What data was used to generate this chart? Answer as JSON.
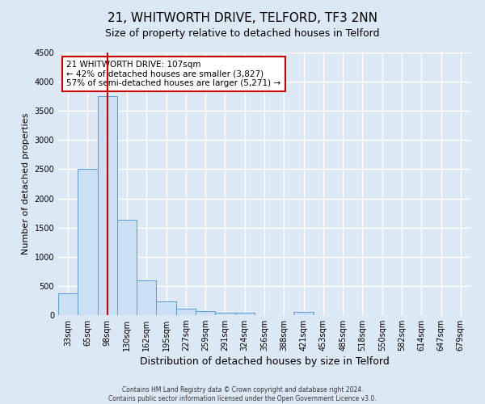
{
  "title": "21, WHITWORTH DRIVE, TELFORD, TF3 2NN",
  "subtitle": "Size of property relative to detached houses in Telford",
  "xlabel": "Distribution of detached houses by size in Telford",
  "ylabel": "Number of detached properties",
  "categories": [
    "33sqm",
    "65sqm",
    "98sqm",
    "130sqm",
    "162sqm",
    "195sqm",
    "227sqm",
    "259sqm",
    "291sqm",
    "324sqm",
    "356sqm",
    "388sqm",
    "421sqm",
    "453sqm",
    "485sqm",
    "518sqm",
    "550sqm",
    "582sqm",
    "614sqm",
    "647sqm",
    "679sqm"
  ],
  "values": [
    370,
    2500,
    3750,
    1640,
    590,
    235,
    110,
    65,
    40,
    35,
    0,
    0,
    60,
    0,
    0,
    0,
    0,
    0,
    0,
    0,
    0
  ],
  "bar_color": "#cce0f5",
  "bar_edge_color": "#5b9bd5",
  "property_line_x": 2.0,
  "property_line_color": "#cc0000",
  "annotation_line1": "21 WHITWORTH DRIVE: 107sqm",
  "annotation_line2": "← 42% of detached houses are smaller (3,827)",
  "annotation_line3": "57% of semi-detached houses are larger (5,271) →",
  "annotation_box_color": "#ffffff",
  "annotation_box_edge": "#cc0000",
  "ylim": [
    0,
    4500
  ],
  "yticks": [
    0,
    500,
    1000,
    1500,
    2000,
    2500,
    3000,
    3500,
    4000,
    4500
  ],
  "bg_color": "#dce9f5",
  "plot_bg_color": "#dce9f5",
  "grid_color": "#ffffff",
  "footer_line1": "Contains HM Land Registry data © Crown copyright and database right 2024.",
  "footer_line2": "Contains public sector information licensed under the Open Government Licence v3.0.",
  "title_fontsize": 11,
  "subtitle_fontsize": 9,
  "xlabel_fontsize": 9,
  "ylabel_fontsize": 8,
  "tick_fontsize": 7
}
